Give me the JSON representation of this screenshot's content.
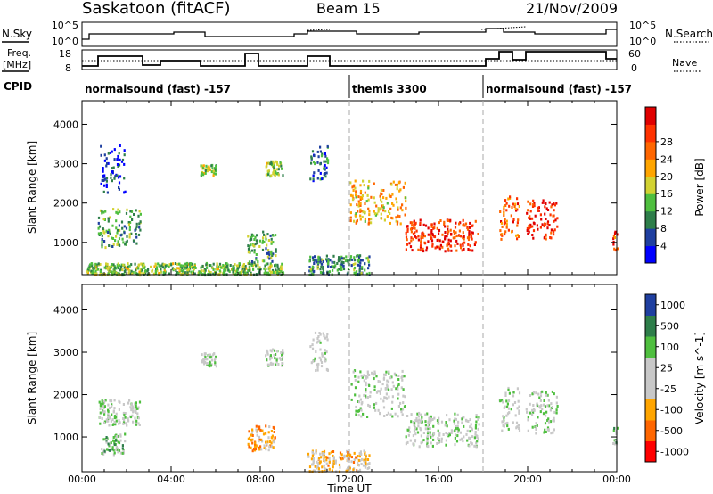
{
  "header": {
    "station": "Saskatoon (fitACF)",
    "beam": "Beam 15",
    "date": "21/Nov/2009"
  },
  "labels": {
    "nsky": "N.Sky",
    "freq_line1": "Freq.",
    "freq_line2": "[MHz]",
    "cpid": "CPID",
    "nsearch": "N.Search",
    "nave": "Nave",
    "nsky_tick_top": "10^5",
    "nsky_tick_bottom": "10^0",
    "nsearch_tick_top": "10^5",
    "nsearch_tick_bottom": "10^0",
    "freq_tick_top": "18",
    "freq_tick_bottom": "8",
    "nave_tick_top": "60",
    "nave_tick_bottom": "0"
  },
  "cpid_segments": [
    {
      "label": "normalsound (fast) -157",
      "start_hour": 0
    },
    {
      "label": "themis 3300",
      "start_hour": 12
    },
    {
      "label": "normalsound (fast) -157",
      "start_hour": 18
    }
  ],
  "colors": {
    "power_scale": [
      "#0000ff",
      "#1f3fa0",
      "#2e7e4a",
      "#4fbf3f",
      "#d2d232",
      "#ffa500",
      "#ff6600",
      "#ff3200",
      "#e00000"
    ],
    "velocity_scale": [
      "#1f3fa0",
      "#2e7e4a",
      "#4fbf3f",
      "#c8c8c8",
      "#c8c8c8",
      "#ffa500",
      "#ff6600",
      "#ff0000"
    ]
  },
  "chart_data": [
    {
      "type": "heatmap",
      "name": "power",
      "xlabel": "Time UT",
      "ylabel": "Slant Range [km]",
      "xlim": [
        0,
        24
      ],
      "ylim": [
        180,
        4600
      ],
      "x_ticks": [
        "00:00",
        "04:00",
        "08:00",
        "12:00",
        "16:00",
        "20:00",
        "00:00"
      ],
      "y_ticks": [
        1000,
        2000,
        3000,
        4000
      ],
      "colorbar_label": "Power [dB]",
      "colorbar_ticks": [
        "4",
        "8",
        "12",
        "16",
        "20",
        "24",
        "28"
      ],
      "regions": [
        {
          "t0": 0.7,
          "t1": 2.6,
          "r0": 900,
          "r1": 1900,
          "level": 0.35
        },
        {
          "t0": 0.8,
          "t1": 1.9,
          "r0": 2300,
          "r1": 3500,
          "level": 0.15
        },
        {
          "t0": 0.2,
          "t1": 9.0,
          "r0": 200,
          "r1": 500,
          "level": 0.4
        },
        {
          "t0": 5.3,
          "t1": 6.0,
          "r0": 2700,
          "r1": 3000,
          "level": 0.45
        },
        {
          "t0": 7.4,
          "t1": 8.7,
          "r0": 500,
          "r1": 1300,
          "level": 0.35
        },
        {
          "t0": 8.2,
          "t1": 9.0,
          "r0": 2700,
          "r1": 3100,
          "level": 0.4
        },
        {
          "t0": 10.1,
          "t1": 12.9,
          "r0": 200,
          "r1": 700,
          "level": 0.3
        },
        {
          "t0": 10.2,
          "t1": 11.0,
          "r0": 2600,
          "r1": 3500,
          "level": 0.2
        },
        {
          "t0": 12.0,
          "t1": 14.5,
          "r0": 1500,
          "r1": 2600,
          "level": 0.6
        },
        {
          "t0": 14.5,
          "t1": 17.8,
          "r0": 800,
          "r1": 1600,
          "level": 0.85
        },
        {
          "t0": 18.7,
          "t1": 19.6,
          "r0": 1100,
          "r1": 2200,
          "level": 0.75
        },
        {
          "t0": 19.9,
          "t1": 21.3,
          "r0": 1100,
          "r1": 2100,
          "level": 0.9
        },
        {
          "t0": 23.8,
          "t1": 24.0,
          "r0": 800,
          "r1": 1300,
          "level": 0.8
        }
      ]
    },
    {
      "type": "heatmap",
      "name": "velocity",
      "xlabel": "Time UT",
      "ylabel": "Slant Range [km]",
      "xlim": [
        0,
        24
      ],
      "ylim": [
        180,
        4600
      ],
      "x_ticks": [
        "00:00",
        "04:00",
        "08:00",
        "12:00",
        "16:00",
        "20:00",
        "00:00"
      ],
      "y_ticks": [
        1000,
        2000,
        3000,
        4000
      ],
      "colorbar_label": "Velocity [m s^-1]",
      "colorbar_ticks": [
        "1000",
        "500",
        "100",
        "25",
        "-25",
        "-100",
        "-500",
        "-1000"
      ],
      "regions": [
        {
          "t0": 0.7,
          "t1": 2.6,
          "r0": 1300,
          "r1": 1900,
          "level": 0.45
        },
        {
          "t0": 0.8,
          "t1": 1.9,
          "r0": 600,
          "r1": 1100,
          "level": 0.35
        },
        {
          "t0": 5.3,
          "t1": 6.0,
          "r0": 2700,
          "r1": 3000,
          "level": 0.45
        },
        {
          "t0": 7.4,
          "t1": 8.7,
          "r0": 700,
          "r1": 1300,
          "level": 0.7
        },
        {
          "t0": 8.2,
          "t1": 9.0,
          "r0": 2700,
          "r1": 3100,
          "level": 0.45
        },
        {
          "t0": 10.1,
          "t1": 12.9,
          "r0": 200,
          "r1": 700,
          "level": 0.62
        },
        {
          "t0": 10.2,
          "t1": 11.0,
          "r0": 2600,
          "r1": 3500,
          "level": 0.45
        },
        {
          "t0": 12.0,
          "t1": 14.5,
          "r0": 1500,
          "r1": 2600,
          "level": 0.45
        },
        {
          "t0": 14.5,
          "t1": 17.8,
          "r0": 800,
          "r1": 1600,
          "level": 0.45
        },
        {
          "t0": 18.7,
          "t1": 19.6,
          "r0": 1100,
          "r1": 2200,
          "level": 0.45
        },
        {
          "t0": 19.9,
          "t1": 21.3,
          "r0": 1100,
          "r1": 2100,
          "level": 0.45
        },
        {
          "t0": 23.8,
          "t1": 24.0,
          "r0": 800,
          "r1": 1300,
          "level": 0.3
        }
      ]
    }
  ]
}
